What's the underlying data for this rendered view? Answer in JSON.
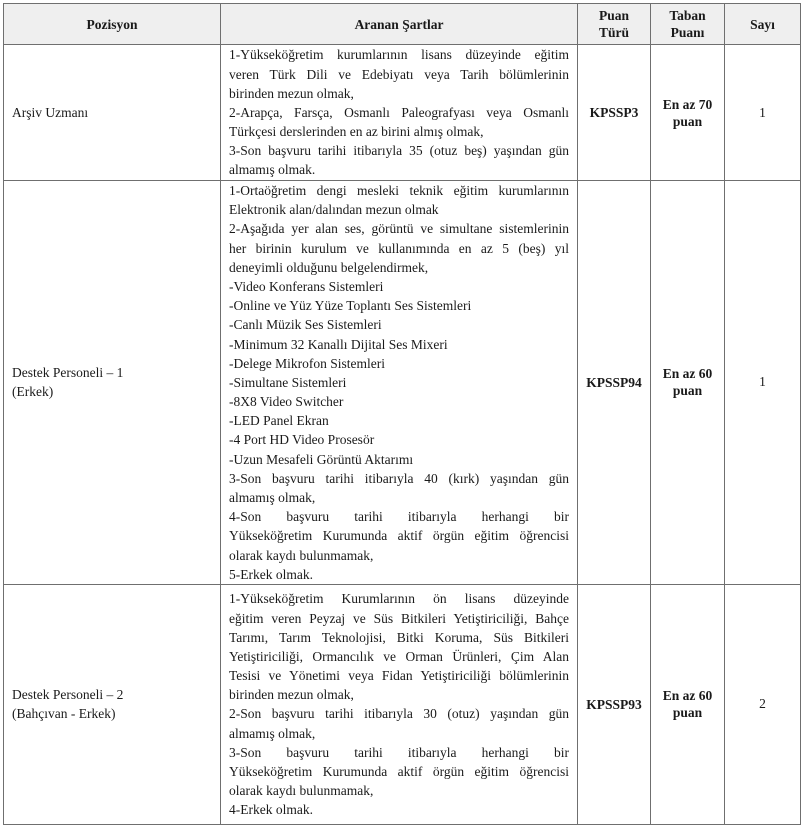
{
  "headers": {
    "position": "Pozisyon",
    "requirements": "Aranan Şartlar",
    "score_type": [
      "Puan",
      "Türü"
    ],
    "base_score": [
      "Taban",
      "Puanı"
    ],
    "count": "Sayı"
  },
  "rows": [
    {
      "position": [
        "Arşiv Uzmanı"
      ],
      "requirements": [
        "1-Yükseköğretim kurumlarının lisans düzeyinde eğitim",
        "veren Türk Dili ve Edebiyatı veya Tarih bölümlerinin",
        "birinden mezun olmak,",
        "2-Arapça, Farsça, Osmanlı Paleografyası veya Osmanlı",
        "Türkçesi derslerinden en az birini almış olmak,",
        "3-Son başvuru tarihi itibarıyla 35 (otuz beş) yaşından gün",
        "almamış olmak."
      ],
      "score_type": "KPSSP3",
      "base_score": [
        "En az 70",
        "puan"
      ],
      "count": "1"
    },
    {
      "position": [
        "Destek Personeli – 1",
        "(Erkek)"
      ],
      "requirements": [
        "1-Ortaöğretim dengi mesleki teknik eğitim kurumlarının",
        "Elektronik alan/dalından mezun olmak",
        "2-Aşağıda yer alan ses, görüntü ve simultane sistemlerinin",
        "her birinin kurulum ve kullanımında en az 5 (beş) yıl",
        "deneyimli olduğunu belgelendirmek,",
        "-Video Konferans Sistemleri",
        "-Online ve Yüz Yüze Toplantı Ses Sistemleri",
        "-Canlı Müzik Ses Sistemleri",
        "-Minimum 32 Kanallı Dijital Ses Mixeri",
        "-Delege Mikrofon Sistemleri",
        "-Simultane Sistemleri",
        "-8X8 Video Switcher",
        "-LED Panel Ekran",
        "-4 Port HD Video Prosesör",
        "-Uzun Mesafeli Görüntü Aktarımı",
        "3-Son başvuru tarihi itibarıyla 40 (kırk) yaşından gün",
        "almamış olmak,",
        "4-Son başvuru tarihi itibarıyla herhangi bir",
        "Yükseköğretim Kurumunda aktif örgün eğitim öğrencisi",
        "olarak kaydı bulunmamak,",
        "5-Erkek olmak."
      ],
      "score_type": "KPSSP94",
      "base_score": [
        "En az 60",
        "puan"
      ],
      "count": "1"
    },
    {
      "position": [
        "Destek Personeli – 2",
        "(Bahçıvan - Erkek)"
      ],
      "requirements": [
        "1-Yükseköğretim Kurumlarının ön lisans düzeyinde",
        "eğitim veren Peyzaj ve Süs Bitkileri Yetiştiriciliği, Bahçe",
        "Tarımı, Tarım Teknolojisi, Bitki Koruma, Süs Bitkileri",
        "Yetiştiriciliği, Ormancılık ve Orman Ürünleri, Çim Alan",
        "Tesisi ve Yönetimi veya Fidan Yetiştiriciliği bölümlerinin",
        "birinden mezun olmak,",
        "2-Son başvuru tarihi itibarıyla 30 (otuz) yaşından gün",
        "almamış olmak,",
        "3-Son başvuru tarihi itibarıyla herhangi bir",
        "Yükseköğretim Kurumunda aktif örgün eğitim öğrencisi",
        "olarak kaydı bulunmamak,",
        "4-Erkek olmak."
      ],
      "score_type": "KPSSP93",
      "base_score": [
        "En az 60",
        "puan"
      ],
      "count": "2"
    }
  ]
}
